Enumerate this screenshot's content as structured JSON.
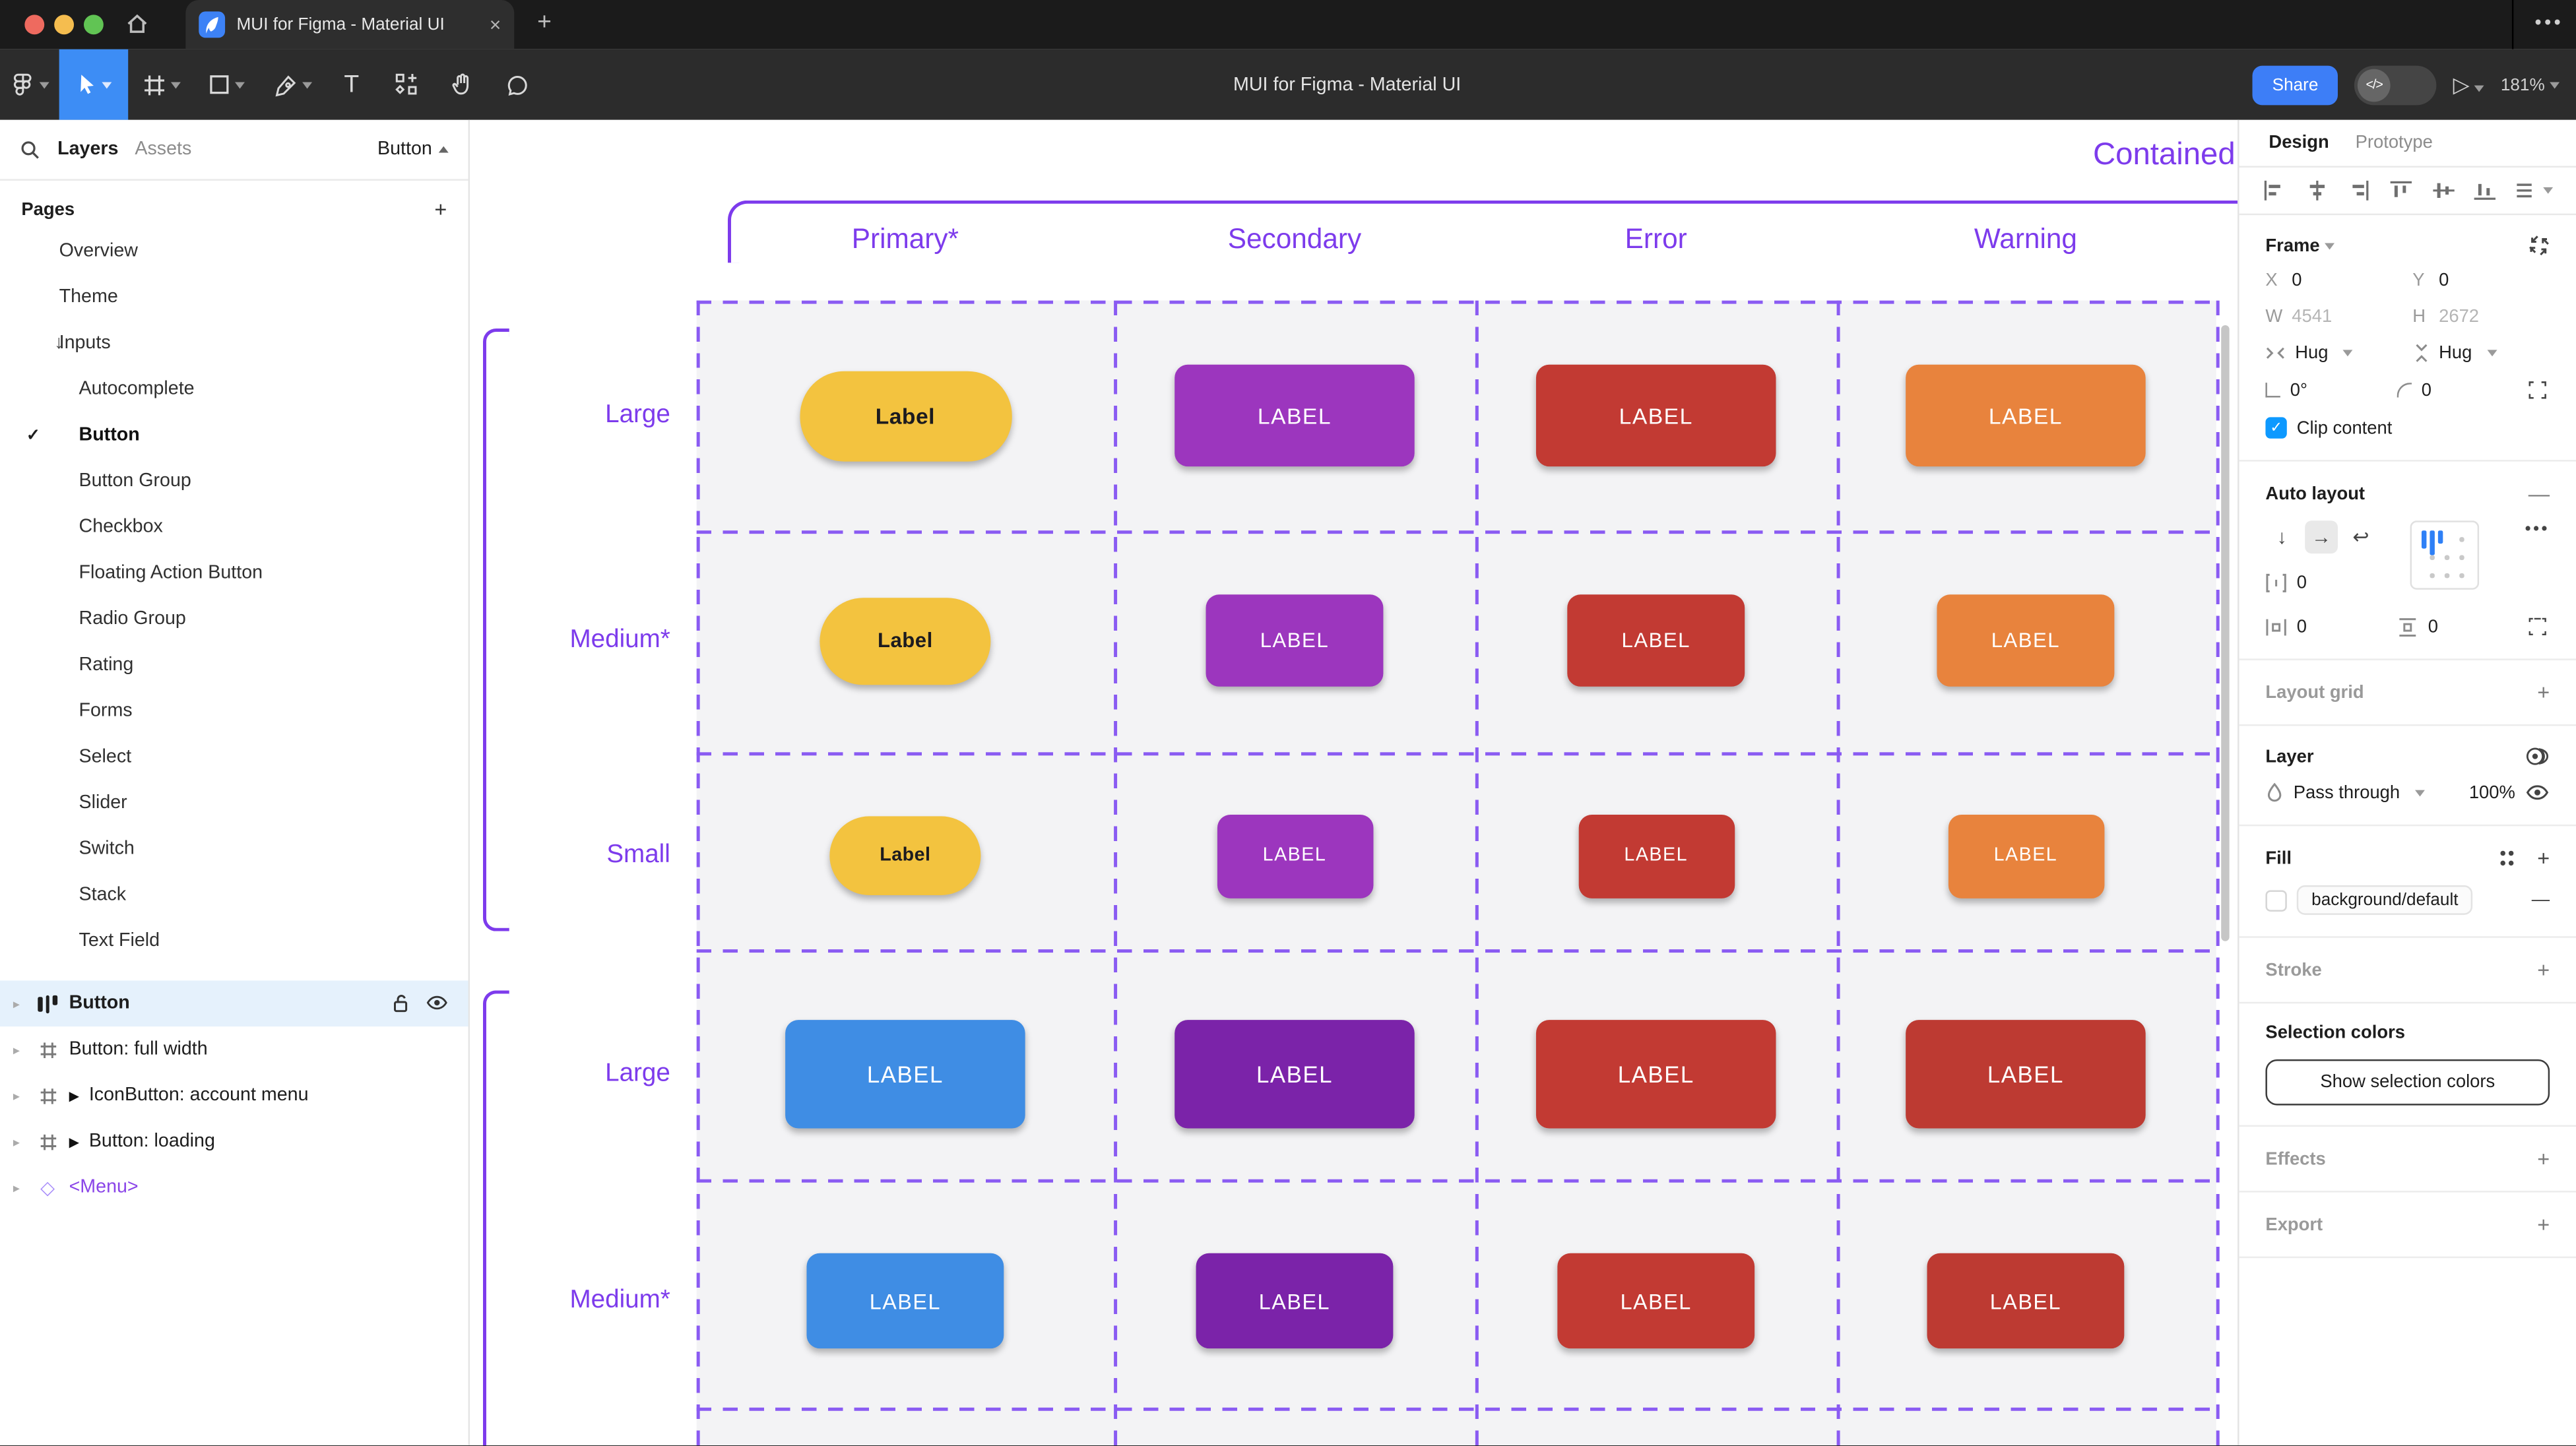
{
  "chrome": {
    "tab_title": "MUI for Figma - Material UI",
    "close_label": "×",
    "new_tab_label": "+",
    "more_label": "•••"
  },
  "toolbar": {
    "document_title": "MUI for Figma - Material UI",
    "share_label": "Share",
    "dev_toggle_label": "</>",
    "play_label": "▷",
    "zoom_value": "181%",
    "text_tool_label": "T"
  },
  "sidebar": {
    "tab_layers": "Layers",
    "tab_assets": "Assets",
    "page_selector": "Button",
    "pages_title": "Pages",
    "add_page_label": "+",
    "check_glyph": "✓",
    "inputs_arrow": "↓",
    "pages": [
      {
        "label": "Overview",
        "level": 1
      },
      {
        "label": "Theme",
        "level": 1
      },
      {
        "label": "Inputs",
        "level": 1,
        "arrow": true
      },
      {
        "label": "Autocomplete",
        "level": 2
      },
      {
        "label": "Button",
        "level": 2,
        "checked": true
      },
      {
        "label": "Button Group",
        "level": 2
      },
      {
        "label": "Checkbox",
        "level": 2
      },
      {
        "label": "Floating Action Button",
        "level": 2
      },
      {
        "label": "Radio Group",
        "level": 2
      },
      {
        "label": "Rating",
        "level": 2
      },
      {
        "label": "Forms",
        "level": 2
      },
      {
        "label": "Select",
        "level": 2
      },
      {
        "label": "Slider",
        "level": 2
      },
      {
        "label": "Switch",
        "level": 2
      },
      {
        "label": "Stack",
        "level": 2
      },
      {
        "label": "Text Field",
        "level": 2
      }
    ],
    "layers": [
      {
        "label": "Button",
        "icon": "auto-layout",
        "selected": true
      },
      {
        "label": "Button: full width",
        "icon": "frame"
      },
      {
        "label": "IconButton: account menu",
        "icon": "frame",
        "marker": "▶"
      },
      {
        "label": "Button: loading",
        "icon": "frame",
        "marker": "▶"
      },
      {
        "label": "<Menu>",
        "icon": "instance",
        "purple": true
      }
    ]
  },
  "canvas": {
    "frame_title": "Contained",
    "accent_color": "#7d3bec",
    "dash_color": "#8a5bf2",
    "cell_background": "#f3f3f5",
    "columns": [
      "Primary*",
      "Secondary",
      "Error",
      "Warning"
    ],
    "rows": [
      "Large",
      "Medium*",
      "Small",
      "Large",
      "Medium*"
    ],
    "button_grid": [
      [
        {
          "text": "Label",
          "bg": "#F3C33F",
          "fg": "#1C1B1F"
        },
        {
          "text": "LABEL",
          "bg": "#9C36BE",
          "fg": "#FFFFFF"
        },
        {
          "text": "LABEL",
          "bg": "#C23A33",
          "fg": "#FFFFFF"
        },
        {
          "text": "LABEL",
          "bg": "#E8833D",
          "fg": "#FFFFFF"
        }
      ],
      [
        {
          "text": "Label",
          "bg": "#F3C33F",
          "fg": "#1C1B1F"
        },
        {
          "text": "LABEL",
          "bg": "#9C36BE",
          "fg": "#FFFFFF"
        },
        {
          "text": "LABEL",
          "bg": "#C23A33",
          "fg": "#FFFFFF"
        },
        {
          "text": "LABEL",
          "bg": "#E8833D",
          "fg": "#FFFFFF"
        }
      ],
      [
        {
          "text": "Label",
          "bg": "#F3C33F",
          "fg": "#1C1B1F"
        },
        {
          "text": "LABEL",
          "bg": "#9C36BE",
          "fg": "#FFFFFF"
        },
        {
          "text": "LABEL",
          "bg": "#C23A33",
          "fg": "#FFFFFF"
        },
        {
          "text": "LABEL",
          "bg": "#E8833D",
          "fg": "#FFFFFF"
        }
      ],
      [
        {
          "text": "LABEL",
          "bg": "#3F8DE4",
          "fg": "#FFFFFF"
        },
        {
          "text": "LABEL",
          "bg": "#7B23A9",
          "fg": "#FFFFFF"
        },
        {
          "text": "LABEL",
          "bg": "#C23A33",
          "fg": "#FFFFFF"
        },
        {
          "text": "LABEL",
          "bg": "#BD3A32",
          "fg": "#FFFFFF"
        }
      ],
      [
        {
          "text": "LABEL",
          "bg": "#3F8DE4",
          "fg": "#FFFFFF"
        },
        {
          "text": "LABEL",
          "bg": "#7B23A9",
          "fg": "#FFFFFF"
        },
        {
          "text": "LABEL",
          "bg": "#C23A33",
          "fg": "#FFFFFF"
        },
        {
          "text": "LABEL",
          "bg": "#BD3A32",
          "fg": "#FFFFFF"
        }
      ]
    ]
  },
  "inspector": {
    "tab_design": "Design",
    "tab_prototype": "Prototype",
    "frame": {
      "title": "Frame",
      "x_label": "X",
      "x_value": "0",
      "y_label": "Y",
      "y_value": "0",
      "w_label": "W",
      "w_value": "4541",
      "h_label": "H",
      "h_value": "2672",
      "hug_h": "Hug",
      "hug_v": "Hug",
      "rotation": "0°",
      "corner_radius": "0",
      "clip_label": "Clip content",
      "check_glyph": "✓"
    },
    "auto_layout": {
      "title": "Auto layout",
      "down_glyph": "↓",
      "right_glyph": "→",
      "wrap_glyph": "↩",
      "gap_value": "0",
      "padding_h": "0",
      "padding_v": "0",
      "more_label": "•••",
      "remove_label": "—"
    },
    "layout_grid_title": "Layout grid",
    "layer": {
      "title": "Layer",
      "blend_mode": "Pass through",
      "opacity": "100%"
    },
    "fill": {
      "title": "Fill",
      "style_name": "background/default",
      "remove_label": "—"
    },
    "stroke_title": "Stroke",
    "selection_colors": {
      "title": "Selection colors",
      "button_label": "Show selection colors"
    },
    "effects_title": "Effects",
    "export_title": "Export",
    "add_label": "+"
  }
}
